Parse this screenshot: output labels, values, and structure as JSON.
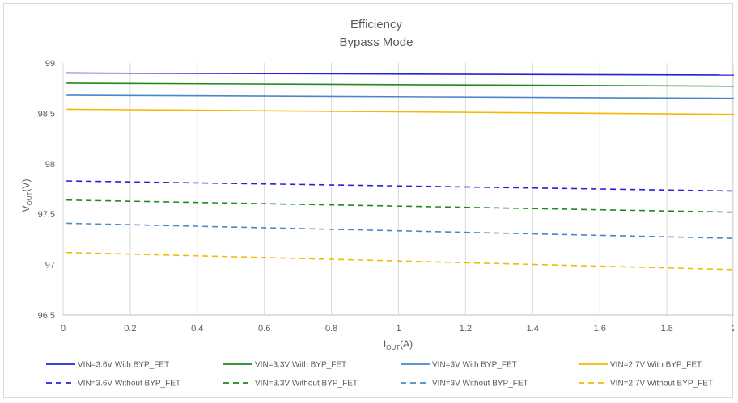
{
  "chart_data": {
    "type": "line",
    "title": "Efficiency",
    "subtitle": "Bypass Mode",
    "xlabel": {
      "main": "I",
      "sub": "OUT",
      "unit": "(A)"
    },
    "ylabel": {
      "main": "V",
      "sub": "OUT",
      "unit": "(V)"
    },
    "xlim": [
      0,
      2
    ],
    "ylim": [
      96.5,
      99
    ],
    "xticks": [
      0,
      0.2,
      0.4,
      0.6,
      0.8,
      1,
      1.2,
      1.4,
      1.6,
      1.8,
      2
    ],
    "xtick_labels": [
      "0",
      "0.2",
      "0.4",
      "0.6",
      "0.8",
      "1",
      "1.2",
      "1.4",
      "1.6",
      "1.8",
      "2"
    ],
    "yticks": [
      96.5,
      97,
      97.5,
      98,
      98.5,
      99
    ],
    "ytick_labels": [
      "96.5",
      "97",
      "97.5",
      "98",
      "98.5",
      "99"
    ],
    "grid": "vertical",
    "legend_position": "bottom",
    "x": [
      0.01,
      2
    ],
    "series": [
      {
        "name": "VIN=3.6V With BYP_FET",
        "values": [
          98.9,
          98.88
        ],
        "color": "#2222dd",
        "dash": "solid"
      },
      {
        "name": "VIN=3.3V With BYP_FET",
        "values": [
          98.8,
          98.77
        ],
        "color": "#1e8a1e",
        "dash": "solid"
      },
      {
        "name": "VIN=3V With BYP_FET",
        "values": [
          98.68,
          98.65
        ],
        "color": "#4a86c8",
        "dash": "solid"
      },
      {
        "name": "VIN=2.7V With BYP_FET",
        "values": [
          98.54,
          98.49
        ],
        "color": "#f5b800",
        "dash": "solid"
      },
      {
        "name": "VIN=3.6V Without BYP_FET",
        "values": [
          97.83,
          97.73
        ],
        "color": "#2222dd",
        "dash": "dashed"
      },
      {
        "name": "VIN=3.3V Without BYP_FET",
        "values": [
          97.64,
          97.52
        ],
        "color": "#1e8a1e",
        "dash": "dashed"
      },
      {
        "name": "VIN=3V Without BYP_FET",
        "values": [
          97.41,
          97.26
        ],
        "color": "#4a86c8",
        "dash": "dashed"
      },
      {
        "name": "VIN=2.7V Without BYP_FET",
        "values": [
          97.12,
          96.95
        ],
        "color": "#f5b800",
        "dash": "dashed"
      }
    ]
  }
}
